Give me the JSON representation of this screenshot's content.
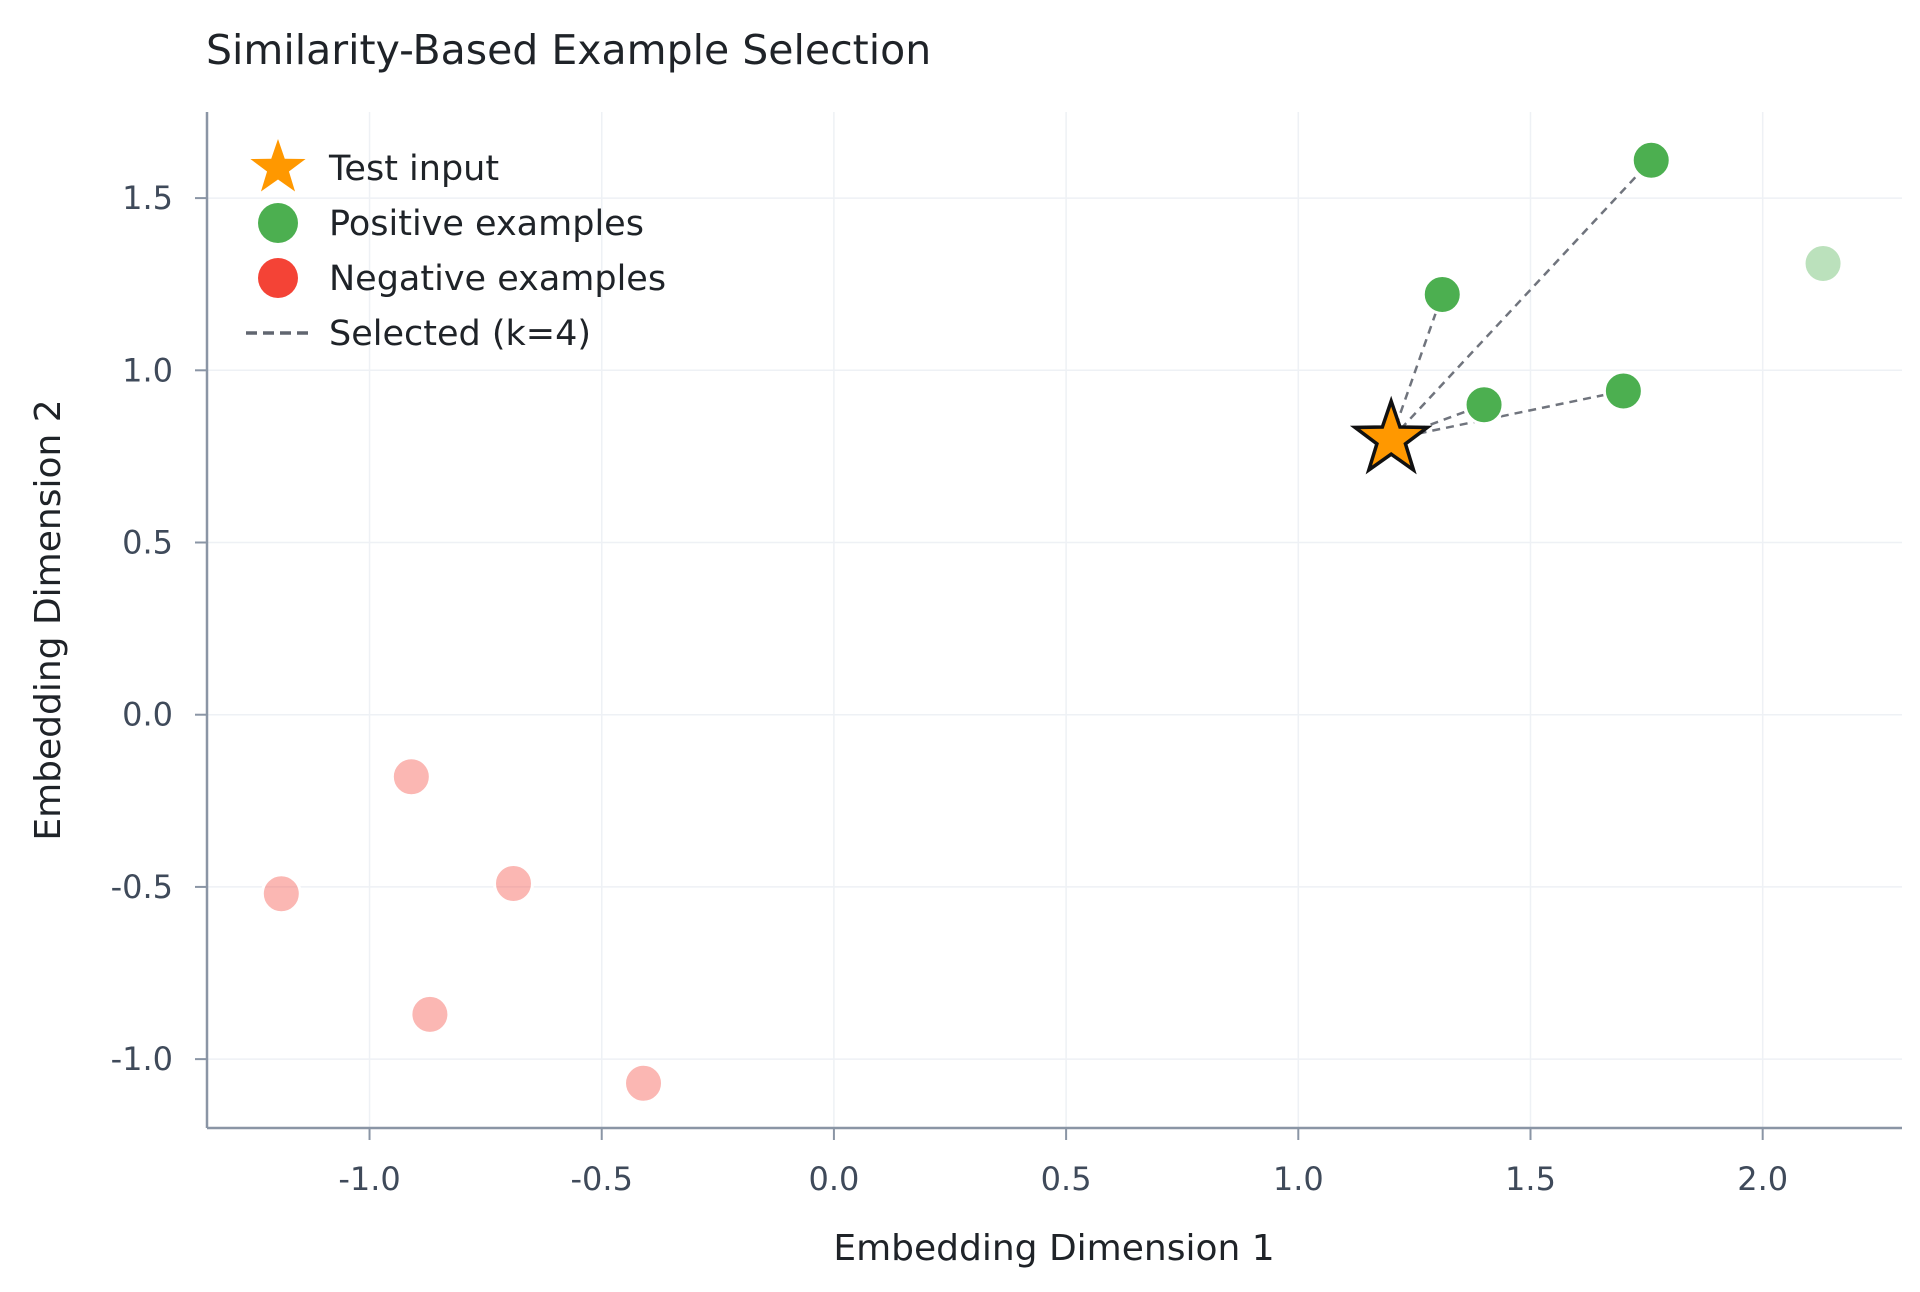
{
  "chart_data": {
    "type": "scatter",
    "title": "Similarity-Based Example Selection",
    "xlabel": "Embedding Dimension 1",
    "ylabel": "Embedding Dimension 2",
    "xlim": [
      -1.35,
      2.3
    ],
    "ylim": [
      -1.2,
      1.75
    ],
    "xticks": [
      -1.0,
      -0.5,
      0.0,
      0.5,
      1.0,
      1.5,
      2.0
    ],
    "yticks": [
      -1.0,
      -0.5,
      0.0,
      0.5,
      1.0,
      1.5
    ],
    "xtick_labels": [
      "-1.0",
      "-0.5",
      "0.0",
      "0.5",
      "1.0",
      "1.5",
      "2.0"
    ],
    "ytick_labels": [
      "-1.0",
      "-0.5",
      "0.0",
      "0.5",
      "1.0",
      "1.5"
    ],
    "grid": true,
    "legend_position": "top-left",
    "test_input": {
      "name": "Test input",
      "x": 1.2,
      "y": 0.8,
      "color": "#ff9800"
    },
    "series": [
      {
        "name": "Positive examples",
        "color": "#4caf50",
        "points": [
          {
            "x": 1.76,
            "y": 1.61,
            "selected": true
          },
          {
            "x": 1.31,
            "y": 1.22,
            "selected": true
          },
          {
            "x": 1.4,
            "y": 0.9,
            "selected": true
          },
          {
            "x": 1.7,
            "y": 0.94,
            "selected": true
          },
          {
            "x": 2.13,
            "y": 1.31,
            "selected": false
          }
        ]
      },
      {
        "name": "Negative examples",
        "color": "#f44336",
        "points": [
          {
            "x": -0.91,
            "y": -0.18,
            "selected": false
          },
          {
            "x": -1.19,
            "y": -0.52,
            "selected": false
          },
          {
            "x": -0.69,
            "y": -0.49,
            "selected": false
          },
          {
            "x": -0.87,
            "y": -0.87,
            "selected": false
          },
          {
            "x": -0.41,
            "y": -1.07,
            "selected": false
          }
        ]
      }
    ],
    "legend": [
      {
        "label": "Test input",
        "marker": "star",
        "color": "#ff9800"
      },
      {
        "label": "Positive examples",
        "marker": "circle",
        "color": "#4caf50"
      },
      {
        "label": "Negative examples",
        "marker": "circle",
        "color": "#f44336"
      },
      {
        "label": "Selected (k=4)",
        "marker": "dashed-line",
        "color": "#616670"
      }
    ]
  }
}
